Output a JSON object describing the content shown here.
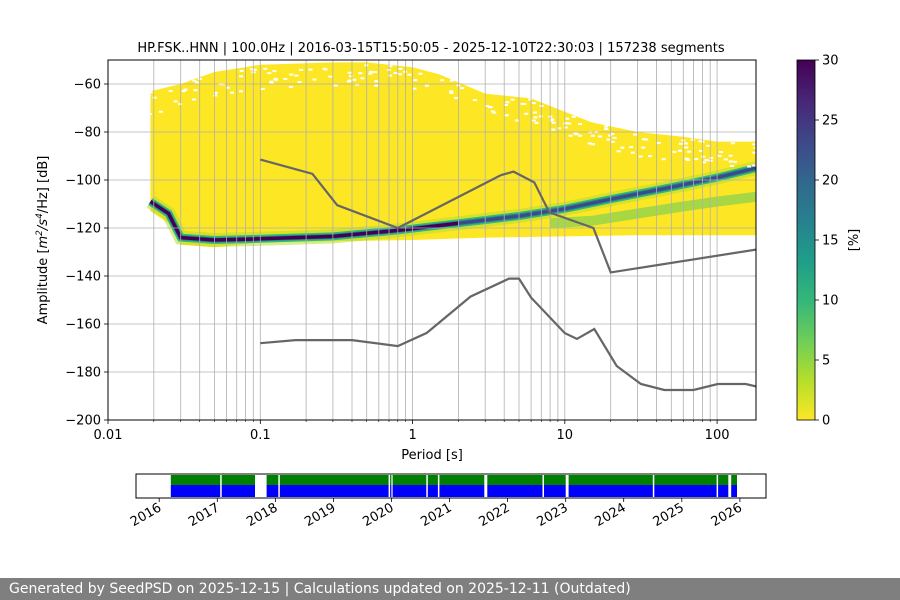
{
  "chart_data": {
    "type": "heatmap",
    "title": "HP.FSK..HNN | 100.0Hz | 2016-03-15T15:50:05 - 2025-12-10T22:30:03 | 157238 segments",
    "xlabel": "Period [s]",
    "ylabel_parts": {
      "pre": "Amplitude [",
      "m": "m",
      "sup1": "2",
      "s": "/s",
      "sup2": "4",
      "hz": "/Hz] [dB]"
    },
    "x_scale": "log",
    "xlim": [
      0.01,
      180
    ],
    "ylim": [
      -200,
      -50
    ],
    "x_ticks": [
      {
        "v": 0.01,
        "label": "0.01"
      },
      {
        "v": 0.1,
        "label": "0.1"
      },
      {
        "v": 1,
        "label": "1"
      },
      {
        "v": 10,
        "label": "10"
      },
      {
        "v": 100,
        "label": "100"
      }
    ],
    "y_ticks": [
      {
        "v": -60,
        "label": "−60"
      },
      {
        "v": -80,
        "label": "−80"
      },
      {
        "v": -100,
        "label": "−100"
      },
      {
        "v": -120,
        "label": "−120"
      },
      {
        "v": -140,
        "label": "−140"
      },
      {
        "v": -160,
        "label": "−160"
      },
      {
        "v": -180,
        "label": "−180"
      },
      {
        "v": -200,
        "label": "−200"
      }
    ],
    "grid": true,
    "colorbar": {
      "label": "[%]",
      "range": [
        0,
        30
      ],
      "ticks": [
        {
          "v": 0,
          "label": "0"
        },
        {
          "v": 5,
          "label": "5"
        },
        {
          "v": 10,
          "label": "10"
        },
        {
          "v": 15,
          "label": "15"
        },
        {
          "v": 20,
          "label": "20"
        },
        {
          "v": 25,
          "label": "25"
        },
        {
          "v": 30,
          "label": "30"
        }
      ],
      "colors": [
        "#fde725",
        "#b5de2b",
        "#6ece58",
        "#35b779",
        "#1f9e89",
        "#26828e",
        "#31688e",
        "#3e4989",
        "#482878",
        "#440154"
      ]
    },
    "mode_curve": [
      [
        0.019,
        -109
      ],
      [
        0.025,
        -114
      ],
      [
        0.03,
        -124
      ],
      [
        0.05,
        -125
      ],
      [
        0.1,
        -124.5
      ],
      [
        0.3,
        -123.5
      ],
      [
        0.8,
        -121
      ],
      [
        2,
        -118
      ],
      [
        5,
        -115
      ],
      [
        10,
        -112
      ],
      [
        20,
        -108
      ],
      [
        50,
        -103
      ],
      [
        100,
        -99
      ],
      [
        180,
        -95
      ]
    ],
    "pdf_envelope": {
      "upper": [
        [
          0.019,
          -63
        ],
        [
          0.03,
          -60
        ],
        [
          0.05,
          -55
        ],
        [
          0.1,
          -52
        ],
        [
          0.3,
          -51
        ],
        [
          0.5,
          -51
        ],
        [
          1,
          -53
        ],
        [
          1.5,
          -56
        ],
        [
          3,
          -64
        ],
        [
          6,
          -66
        ],
        [
          15,
          -76
        ],
        [
          30,
          -80
        ],
        [
          60,
          -82
        ],
        [
          100,
          -84
        ],
        [
          180,
          -84
        ]
      ],
      "lower": [
        [
          0.019,
          -113
        ],
        [
          0.025,
          -118
        ],
        [
          0.03,
          -127
        ],
        [
          0.05,
          -128
        ],
        [
          0.1,
          -126
        ],
        [
          1,
          -125
        ],
        [
          3,
          -124
        ],
        [
          10,
          -123.5
        ],
        [
          30,
          -123
        ],
        [
          100,
          -123
        ],
        [
          180,
          -123
        ]
      ]
    },
    "nhnm": [
      [
        0.1,
        -91.5
      ],
      [
        0.22,
        -97.4
      ],
      [
        0.32,
        -110.5
      ],
      [
        0.8,
        -120
      ],
      [
        3.8,
        -98
      ],
      [
        4.6,
        -96.5
      ],
      [
        6.3,
        -101
      ],
      [
        7.9,
        -113.5
      ],
      [
        15.4,
        -120
      ],
      [
        20,
        -138.5
      ],
      [
        180,
        -129
      ]
    ],
    "nlnm": [
      [
        0.1,
        -168
      ],
      [
        0.17,
        -166.7
      ],
      [
        0.4,
        -166.7
      ],
      [
        0.8,
        -169.2
      ],
      [
        1.24,
        -163.7
      ],
      [
        2.4,
        -148.6
      ],
      [
        4.3,
        -141.1
      ],
      [
        5,
        -141.1
      ],
      [
        6,
        -149
      ],
      [
        10,
        -163.8
      ],
      [
        12,
        -166.2
      ],
      [
        15.6,
        -162.1
      ],
      [
        21.9,
        -177.5
      ],
      [
        31.6,
        -185
      ],
      [
        45,
        -187.5
      ],
      [
        70,
        -187.5
      ],
      [
        101,
        -185
      ],
      [
        154,
        -185
      ],
      [
        180,
        -186
      ]
    ],
    "timeline": {
      "years": [
        {
          "v": 2016,
          "label": "2016"
        },
        {
          "v": 2017,
          "label": "2017"
        },
        {
          "v": 2018,
          "label": "2018"
        },
        {
          "v": 2019,
          "label": "2019"
        },
        {
          "v": 2020,
          "label": "2020"
        },
        {
          "v": 2021,
          "label": "2021"
        },
        {
          "v": 2022,
          "label": "2022"
        },
        {
          "v": 2023,
          "label": "2023"
        },
        {
          "v": 2024,
          "label": "2024"
        },
        {
          "v": 2025,
          "label": "2025"
        },
        {
          "v": 2026,
          "label": "2026"
        }
      ],
      "range": [
        2015.6,
        2026.45
      ],
      "coverage": [
        [
          2016.2,
          2017.65
        ],
        [
          2017.85,
          2020.0
        ],
        [
          2020.02,
          2021.6
        ],
        [
          2021.65,
          2023.0
        ],
        [
          2023.05,
          2025.8
        ],
        [
          2025.85,
          2025.95
        ]
      ],
      "gaps_marks": [
        2017.05,
        2018.05,
        2019.95,
        2020.6,
        2020.8,
        2022.6,
        2024.5,
        2025.6
      ],
      "colors": {
        "upper": "#008000",
        "lower": "#0000ff"
      }
    }
  },
  "footer": {
    "text": "Generated by SeedPSD on 2025-12-15 | Calculations updated on 2025-12-11 (Outdated)"
  }
}
